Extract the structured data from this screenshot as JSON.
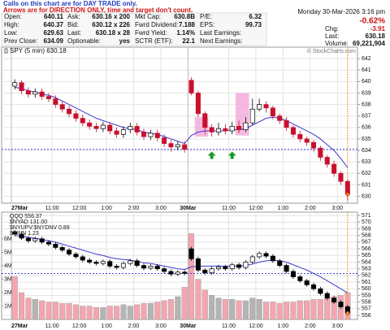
{
  "note": {
    "line1": "Calls on this chart are for DAY TRADE only.",
    "line2": "Arrows are for DIRECTION ONLY, time and target don't count."
  },
  "quote": {
    "rows": [
      [
        {
          "label": "Open:",
          "value": "640.11"
        },
        {
          "label": "Ask:",
          "value": "630.16 x 200"
        },
        {
          "label": "Mkt Cap:",
          "value": "630.8B"
        },
        {
          "label": "P/E:",
          "value": "6.32"
        }
      ],
      [
        {
          "label": "High:",
          "value": "640.37"
        },
        {
          "label": "Bid:",
          "value": "630.12 x 226"
        },
        {
          "label": "Fwrd Dividend:",
          "value": "7.188"
        },
        {
          "label": "EPS:",
          "value": "99.73"
        }
      ],
      [
        {
          "label": "Low:",
          "value": "629.63"
        },
        {
          "label": "Last:",
          "value": "630.18 x 28"
        },
        {
          "label": "Fwrd Yield:",
          "value": "1.14%"
        },
        {
          "label": "Last Earnings:"
        }
      ],
      [
        {
          "label": "Prev Close:",
          "value": "634.09"
        },
        {
          "label": "Optionable:",
          "value": "yes"
        },
        {
          "label": "SCTR (ETF):",
          "value": "22.1"
        },
        {
          "label": "Next Earnings:"
        }
      ]
    ]
  },
  "summary": {
    "date": "Monday 30-Mar-2026 3:16 pm",
    "pct_change": "-0.62%",
    "chg": {
      "label": "Chg:",
      "value": "-3.91"
    },
    "last": {
      "label": "Last:",
      "value": "630.18"
    },
    "volume": {
      "label": "Volume:",
      "value": "69,221,904"
    },
    "watermark": "© StockCharts.com"
  },
  "chart_data": [
    {
      "type": "candlestick",
      "title": "SPY (5 min) 630.18",
      "categories": [
        "27Mar",
        null,
        null,
        null,
        null,
        null,
        "11:00",
        null,
        null,
        null,
        "12:00",
        null,
        null,
        null,
        "1:00",
        null,
        null,
        null,
        "2:00",
        null,
        null,
        null,
        "3:00",
        null,
        null,
        null,
        "30Mar",
        null,
        null,
        null,
        null,
        null,
        "11:00",
        null,
        null,
        null,
        "12:00",
        null,
        null,
        null,
        "1:00",
        null,
        null,
        null,
        "2:00",
        null,
        null,
        null,
        "3:00",
        null
      ],
      "open": [
        639.6,
        639.9,
        639.2,
        638.9,
        639.1,
        638.7,
        638.5,
        638.0,
        637.6,
        637.2,
        636.8,
        636.4,
        636.1,
        635.9,
        636.2,
        635.7,
        635.4,
        635.8,
        636.1,
        635.6,
        635.2,
        635.5,
        635.1,
        634.6,
        634.3,
        634.5,
        640.11,
        639.0,
        637.2,
        636.0,
        635.6,
        635.9,
        635.7,
        636.1,
        635.8,
        636.4,
        637.6,
        638.0,
        637.7,
        637.0,
        636.6,
        636.0,
        635.4,
        635.0,
        634.7,
        634.2,
        633.4,
        632.8,
        632.0,
        631.3
      ],
      "high": [
        640.2,
        640.1,
        639.5,
        639.4,
        639.4,
        639.0,
        638.8,
        638.3,
        637.9,
        637.5,
        637.1,
        636.7,
        636.4,
        636.5,
        636.5,
        636.0,
        636.1,
        636.4,
        636.4,
        635.9,
        635.8,
        635.8,
        635.4,
        634.9,
        634.8,
        634.8,
        640.37,
        639.2,
        637.4,
        636.3,
        636.4,
        636.3,
        636.5,
        636.6,
        636.9,
        638.5,
        638.5,
        638.3,
        637.9,
        637.2,
        636.9,
        636.2,
        635.7,
        635.2,
        634.9,
        634.4,
        633.6,
        633.1,
        632.2,
        631.5
      ],
      "low": [
        639.3,
        638.9,
        638.6,
        638.6,
        638.4,
        638.2,
        637.7,
        637.3,
        636.9,
        636.5,
        636.1,
        635.8,
        635.6,
        635.6,
        635.4,
        635.1,
        635.1,
        635.5,
        635.3,
        634.9,
        634.9,
        634.8,
        634.3,
        633.9,
        634.0,
        633.8,
        638.8,
        636.9,
        635.4,
        635.2,
        635.3,
        635.4,
        635.4,
        635.5,
        635.6,
        636.2,
        637.4,
        637.3,
        636.7,
        636.3,
        635.7,
        635.1,
        634.7,
        634.4,
        633.9,
        633.1,
        632.5,
        631.7,
        631.0,
        629.63
      ],
      "close": [
        639.9,
        639.2,
        638.9,
        639.1,
        638.7,
        638.5,
        638.0,
        637.6,
        637.2,
        636.8,
        636.4,
        636.1,
        635.9,
        636.2,
        635.7,
        635.4,
        635.8,
        636.1,
        635.6,
        635.2,
        635.5,
        635.1,
        634.6,
        634.3,
        634.5,
        634.09,
        639.0,
        637.2,
        636.0,
        635.6,
        635.9,
        635.7,
        636.1,
        635.8,
        636.4,
        637.6,
        638.0,
        637.7,
        637.0,
        636.6,
        636.0,
        635.4,
        635.0,
        634.7,
        634.2,
        633.4,
        632.8,
        632.0,
        631.3,
        630.18
      ],
      "moving_average": [
        639.5,
        639.4,
        639.2,
        639.1,
        638.9,
        638.8,
        638.6,
        638.3,
        638.0,
        637.7,
        637.4,
        637.1,
        636.8,
        636.6,
        636.4,
        636.2,
        636.0,
        635.9,
        635.8,
        635.6,
        635.5,
        635.4,
        635.2,
        635.0,
        634.8,
        634.6,
        635.3,
        635.6,
        635.7,
        635.7,
        635.7,
        635.7,
        635.8,
        635.8,
        635.9,
        636.2,
        636.5,
        636.8,
        636.9,
        636.8,
        636.6,
        636.3,
        636.0,
        635.7,
        635.4,
        635.0,
        634.5,
        634.0,
        633.3,
        632.5
      ],
      "reference_line": 634.09,
      "up_arrows": [
        {
          "x": 29,
          "y": 633.9
        },
        {
          "x": 32,
          "y": 633.9
        }
      ],
      "highlight_boxes": [
        {
          "x0": 26.5,
          "x1": 28.5,
          "y0": 635.2,
          "y1": 636.9
        },
        {
          "x0": 32.5,
          "x1": 34.5,
          "y0": 635.3,
          "y1": 639.0
        }
      ],
      "up_color": "#000000",
      "down_color": "#c8102e",
      "ma_color": "#3a3ad0",
      "ref_color": "#2a2ae0",
      "highlight_color": "#f2a8d8",
      "marker_color": "#f0a020",
      "ylim": [
        629.4,
        643
      ],
      "yticks": [
        630,
        631,
        632,
        633,
        634,
        635,
        636,
        637,
        638,
        639,
        640,
        641,
        642
      ],
      "grid": true
    },
    {
      "type": "candlestick",
      "legend": [
        "QQQ 556.37",
        "$NYAD 131.00",
        "$NYUPV:$NYDNV 0.89",
        "$TRIN 1.23"
      ],
      "categories": [
        "27Mar",
        null,
        null,
        null,
        null,
        null,
        "11:00",
        null,
        null,
        null,
        "12:00",
        null,
        null,
        null,
        "1:00",
        null,
        null,
        null,
        "2:00",
        null,
        null,
        null,
        "3:00",
        null,
        null,
        null,
        "30Mar",
        null,
        null,
        null,
        null,
        null,
        "11:00",
        null,
        null,
        null,
        "12:00",
        null,
        null,
        null,
        "1:00",
        null,
        null,
        null,
        "2:00",
        null,
        null,
        null,
        "3:00",
        null
      ],
      "open": [
        568.5,
        568.2,
        567.6,
        567.2,
        567.5,
        567.0,
        566.7,
        566.2,
        565.8,
        565.2,
        564.8,
        564.3,
        564.0,
        563.8,
        564.1,
        563.4,
        563.2,
        563.8,
        564.2,
        563.5,
        563.1,
        563.4,
        563.0,
        562.6,
        562.2,
        562.5,
        566.0,
        564.5,
        562.8,
        562.4,
        563.0,
        563.3,
        563.0,
        563.6,
        563.2,
        564.0,
        564.8,
        565.3,
        564.9,
        564.2,
        563.5,
        562.6,
        561.8,
        561.2,
        560.6,
        560.0,
        559.3,
        558.6,
        558.0,
        557.3
      ],
      "high": [
        568.8,
        568.5,
        567.9,
        567.8,
        567.8,
        567.3,
        567.0,
        566.5,
        566.1,
        565.5,
        565.1,
        564.6,
        564.3,
        564.4,
        564.4,
        563.7,
        564.1,
        564.5,
        564.5,
        563.8,
        563.7,
        563.7,
        563.3,
        562.9,
        562.8,
        562.8,
        566.3,
        564.8,
        563.1,
        563.3,
        563.6,
        563.6,
        563.9,
        563.9,
        564.3,
        565.1,
        565.6,
        565.6,
        565.2,
        564.5,
        563.8,
        562.9,
        562.1,
        561.5,
        560.9,
        560.3,
        559.6,
        558.9,
        558.3,
        557.6
      ],
      "low": [
        567.9,
        567.3,
        566.9,
        566.9,
        566.7,
        566.4,
        565.9,
        565.5,
        564.9,
        564.5,
        564.0,
        563.7,
        563.5,
        563.5,
        563.1,
        562.9,
        562.9,
        563.5,
        563.2,
        562.8,
        562.8,
        562.7,
        562.3,
        561.9,
        561.9,
        562.0,
        564.2,
        562.5,
        562.1,
        562.1,
        562.7,
        562.7,
        562.7,
        562.9,
        562.9,
        563.7,
        564.5,
        564.6,
        563.9,
        563.2,
        562.3,
        561.5,
        560.9,
        560.3,
        559.7,
        559.0,
        558.3,
        557.7,
        557.0,
        556.1
      ],
      "close": [
        568.2,
        567.6,
        567.2,
        567.5,
        567.0,
        566.7,
        566.2,
        565.8,
        565.2,
        564.8,
        564.3,
        564.0,
        563.8,
        564.1,
        563.4,
        563.2,
        563.8,
        564.2,
        563.5,
        563.1,
        563.4,
        563.0,
        562.6,
        562.2,
        562.5,
        562.3,
        564.5,
        562.8,
        562.4,
        563.0,
        563.3,
        563.0,
        563.6,
        563.2,
        564.0,
        564.8,
        565.3,
        564.9,
        564.2,
        563.5,
        562.6,
        561.8,
        561.2,
        560.6,
        560.0,
        559.3,
        558.6,
        558.0,
        557.3,
        556.37
      ],
      "moving_average": [
        568.0,
        567.9,
        567.7,
        567.6,
        567.4,
        567.2,
        567.0,
        566.7,
        566.4,
        566.1,
        565.8,
        565.5,
        565.2,
        565.0,
        564.7,
        564.5,
        564.4,
        564.3,
        564.1,
        563.9,
        563.8,
        563.6,
        563.4,
        563.2,
        563.0,
        562.9,
        563.3,
        563.4,
        563.4,
        563.4,
        563.4,
        563.4,
        563.4,
        563.4,
        563.5,
        563.7,
        564.0,
        564.2,
        564.3,
        564.2,
        564.0,
        563.6,
        563.2,
        562.8,
        562.3,
        561.8,
        561.2,
        560.6,
        560.0,
        559.4
      ],
      "reference_line": 562.3,
      "volume": {
        "axis": "y2",
        "values": [
          3200000,
          2000000,
          1600000,
          1500000,
          1400000,
          1300000,
          1300000,
          1200000,
          1200000,
          1100000,
          1000000,
          1000000,
          900000,
          900000,
          1000000,
          1000000,
          1100000,
          1000000,
          1100000,
          1200000,
          1200000,
          1300000,
          1400000,
          1500000,
          1700000,
          2400000,
          6400000,
          3000000,
          2200000,
          1800000,
          1600000,
          1500000,
          1500000,
          1400000,
          1400000,
          1600000,
          1500000,
          1300000,
          1300000,
          1200000,
          1300000,
          1300000,
          1400000,
          1400000,
          1500000,
          1500000,
          1600000,
          1700000,
          1800000,
          2000000
        ]
      },
      "volume_up_color": "#b4b4b4",
      "volume_down_color": "#f3a6b0",
      "up_color": "#000000",
      "down_color": "#000000",
      "ma_color": "#3a3ad0",
      "ref_color": "#2a2ae0",
      "marker_color": "#f0a020",
      "ylim": [
        555.4,
        571.5
      ],
      "yticks": [
        556,
        557,
        558,
        559,
        560,
        561,
        562,
        563,
        564,
        565,
        566,
        567,
        568,
        569,
        570,
        571
      ],
      "y2lim": [
        0,
        8000000
      ],
      "y2ticks": [
        {
          "value": 1000000,
          "label": "1M"
        },
        {
          "value": 2000000,
          "label": "2M"
        },
        {
          "value": 3000000,
          "label": "3M"
        },
        {
          "value": 4000000,
          "label": "4M"
        },
        {
          "value": 5000000,
          "label": "5M"
        },
        {
          "value": 6000000,
          "label": "6M"
        }
      ],
      "grid": true
    }
  ]
}
